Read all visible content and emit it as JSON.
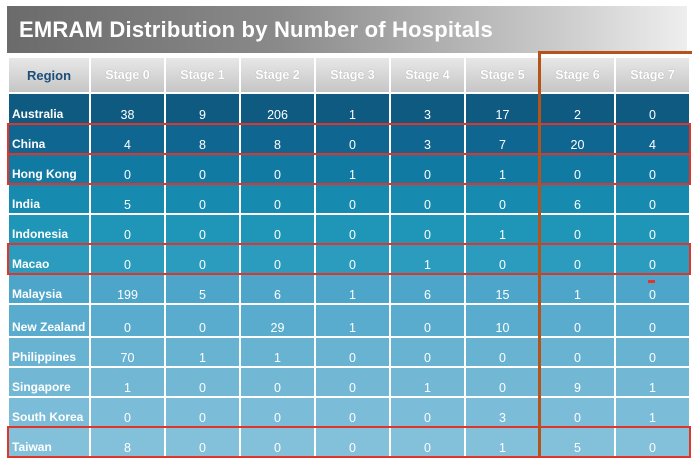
{
  "chart_data": {
    "type": "table",
    "title": "EMRAM Distribution by Number of Hospitals",
    "columns": [
      "Region",
      "Stage 0",
      "Stage 1",
      "Stage 2",
      "Stage 3",
      "Stage 4",
      "Stage 5",
      "Stage 6",
      "Stage 7"
    ],
    "rows": [
      {
        "region": "Australia",
        "values": [
          38,
          9,
          206,
          1,
          3,
          17,
          2,
          0
        ],
        "highlighted": false
      },
      {
        "region": "China",
        "values": [
          4,
          8,
          8,
          0,
          3,
          7,
          20,
          4
        ],
        "highlighted": true
      },
      {
        "region": "Hong Kong",
        "values": [
          0,
          0,
          0,
          1,
          0,
          1,
          0,
          0
        ],
        "highlighted": true
      },
      {
        "region": "India",
        "values": [
          5,
          0,
          0,
          0,
          0,
          0,
          6,
          0
        ],
        "highlighted": false
      },
      {
        "region": "Indonesia",
        "values": [
          0,
          0,
          0,
          0,
          0,
          1,
          0,
          0
        ],
        "highlighted": false
      },
      {
        "region": "Macao",
        "values": [
          0,
          0,
          0,
          0,
          1,
          0,
          0,
          0
        ],
        "highlighted": true
      },
      {
        "region": "Malaysia",
        "values": [
          199,
          5,
          6,
          1,
          6,
          15,
          1,
          0
        ],
        "highlighted": false
      },
      {
        "region": "New Zealand",
        "values": [
          0,
          0,
          29,
          1,
          0,
          10,
          0,
          0
        ],
        "highlighted": false
      },
      {
        "region": "Philippines",
        "values": [
          70,
          1,
          1,
          0,
          0,
          0,
          0,
          0
        ],
        "highlighted": false
      },
      {
        "region": "Singapore",
        "values": [
          1,
          0,
          0,
          0,
          1,
          0,
          9,
          1
        ],
        "highlighted": false
      },
      {
        "region": "South Korea",
        "values": [
          0,
          0,
          0,
          0,
          0,
          3,
          0,
          1
        ],
        "highlighted": false
      },
      {
        "region": "Taiwan",
        "values": [
          8,
          0,
          0,
          0,
          0,
          1,
          5,
          0
        ],
        "highlighted": true
      }
    ],
    "highlighted_columns": [
      "Stage 6",
      "Stage 7"
    ],
    "colors": {
      "highlight_row_border": "#e0352b",
      "highlight_column_border": "#b5531b",
      "row_colors": [
        "#0e5a80",
        "#0f6690",
        "#117aa3",
        "#168aaf",
        "#1f95b8",
        "#2b9cbd",
        "#4da5c9",
        "#5aacce",
        "#68b3d2",
        "#72b8d5",
        "#7bbdd8",
        "#83c1da"
      ]
    }
  }
}
